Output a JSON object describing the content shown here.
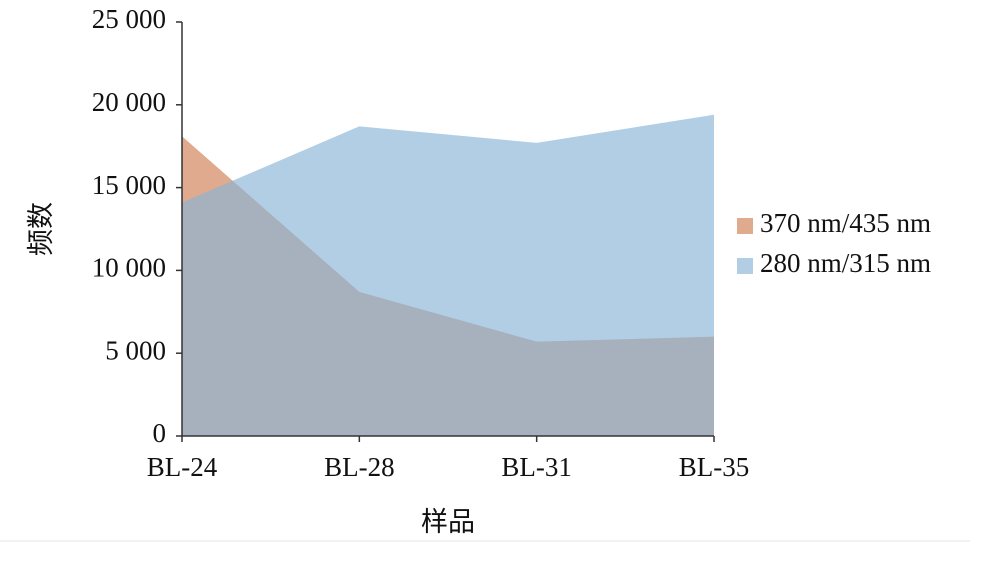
{
  "chart_data": {
    "type": "area",
    "y_label": "频数",
    "x_label": "样品",
    "categories": [
      "BL-24",
      "BL-28",
      "BL-31",
      "BL-35"
    ],
    "series": [
      {
        "name": "370 nm/435 nm",
        "color": "#e0aa8f",
        "values": [
          18100,
          8700,
          5700,
          6000
        ]
      },
      {
        "name": "280 nm/315 nm",
        "color": "#89b3d5",
        "values": [
          14100,
          18700,
          17700,
          19400
        ]
      }
    ],
    "ylim": [
      0,
      25000
    ],
    "yticks": [
      0,
      {
        "value": 5000,
        "label": "5 000"
      },
      {
        "value": 10000,
        "label": "10 000"
      },
      {
        "value": 15000,
        "label": "15 000"
      },
      {
        "value": 20000,
        "label": "20 000"
      },
      {
        "value": 25000,
        "label": "25 000"
      }
    ],
    "legend": "right"
  }
}
